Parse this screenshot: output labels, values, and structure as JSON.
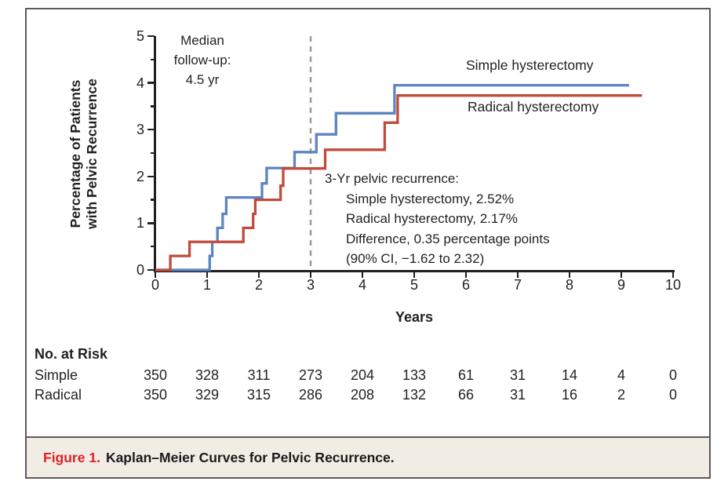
{
  "figure": {
    "caption_label": "Figure 1.",
    "caption_title": "Kaplan–Meier Curves for Pelvic Recurrence."
  },
  "chart_data": {
    "type": "line",
    "subtype": "kaplan_meier_step",
    "title": "",
    "xlabel": "Years",
    "ylabel_lines": [
      "Percentage of Patients",
      "with Pelvic Recurrence"
    ],
    "xlim": [
      0,
      10
    ],
    "ylim": [
      0,
      5
    ],
    "x_ticks": [
      0,
      1,
      2,
      3,
      4,
      5,
      6,
      7,
      8,
      9,
      10
    ],
    "y_ticks": [
      0,
      1,
      2,
      3,
      4,
      5
    ],
    "y_minor_ticks": [
      0.5,
      1.5,
      2.5,
      3.5,
      4.5
    ],
    "grid": false,
    "reference_line": {
      "x": 3,
      "style": "dashed",
      "color": "#97999b"
    },
    "series": [
      {
        "name": "Simple hysterectomy",
        "color": "#5b84c3",
        "end_x": 9.15,
        "points": [
          [
            0,
            0
          ],
          [
            1.05,
            0.3
          ],
          [
            1.1,
            0.6
          ],
          [
            1.2,
            0.9
          ],
          [
            1.3,
            1.2
          ],
          [
            1.37,
            1.55
          ],
          [
            2.06,
            1.85
          ],
          [
            2.15,
            2.18
          ],
          [
            2.69,
            2.52
          ],
          [
            3.11,
            2.9
          ],
          [
            3.49,
            3.35
          ],
          [
            4.62,
            3.95
          ]
        ]
      },
      {
        "name": "Radical hysterectomy",
        "color": "#c14b3b",
        "end_x": 9.4,
        "points": [
          [
            0,
            0
          ],
          [
            0.29,
            0.3
          ],
          [
            0.66,
            0.6
          ],
          [
            1.7,
            0.9
          ],
          [
            1.89,
            1.2
          ],
          [
            1.93,
            1.5
          ],
          [
            2.42,
            1.8
          ],
          [
            2.47,
            2.17
          ],
          [
            3.28,
            2.57
          ],
          [
            4.43,
            3.15
          ],
          [
            4.68,
            3.73
          ]
        ]
      }
    ],
    "annotations": {
      "median_lines": [
        "Median",
        "follow-up:",
        "4.5 yr"
      ],
      "stats_title": "3-Yr pelvic recurrence:",
      "stats_lines": [
        "Simple hysterectomy, 2.52%",
        "Radical hysterectomy, 2.17%",
        "Difference, 0.35 percentage points",
        "(90% CI, −1.62 to 2.32)"
      ]
    },
    "series_labels": [
      "Simple hysterectomy",
      "Radical hysterectomy"
    ]
  },
  "risk_table": {
    "header": "No. at Risk",
    "rows": [
      {
        "label": "Simple",
        "values": [
          "350",
          "328",
          "311",
          "273",
          "204",
          "133",
          "61",
          "31",
          "14",
          "4",
          "0"
        ]
      },
      {
        "label": "Radical",
        "values": [
          "350",
          "329",
          "315",
          "286",
          "208",
          "132",
          "66",
          "31",
          "16",
          "2",
          "0"
        ]
      }
    ]
  },
  "colors": {
    "simple_curve": "#5b84c3",
    "radical_curve": "#c14b3b",
    "reference_dash": "#97999b",
    "axis_text": "#231f20",
    "frame_border": "#595a5c",
    "caption_background": "#f2ede4",
    "caption_label_red": "#e01f26"
  }
}
